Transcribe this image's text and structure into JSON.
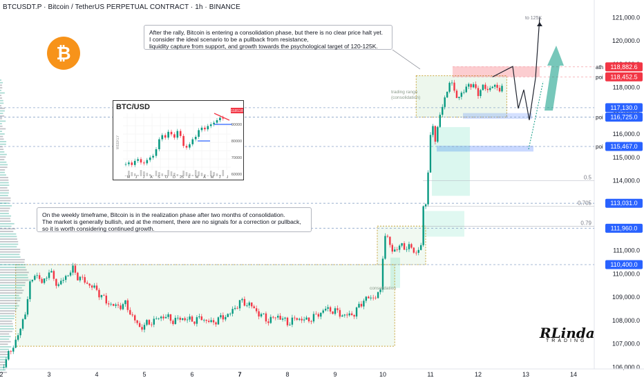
{
  "header": {
    "title": "BTCUSDT.P · Bitcoin / TetherUS PERPETUAL CONTRACT · 1h · BINANCE"
  },
  "notes": {
    "top": "After the rally, Bitcoin is entering a consolidation phase, but there is no clear price halt yet.\nI consider the ideal scenario to be a pullback from resistance,\nliquidity capture from support, and growth towards the psychological target of 120-125K.",
    "bottom": "On the weekly timeframe, Bitcoin is in the realization phase after two months of consolidation.\nThe market is generally bullish, and at the moment, there are no signals for a correction or pullback,\nso it is worth considering continued growth."
  },
  "inset": {
    "title": "BTC/USD",
    "price_tag": "118118",
    "y_ticks": [
      "90000",
      "80000",
      "70000",
      "60000"
    ],
    "x_ticks": [
      "M",
      "J",
      "J",
      "A",
      "S",
      "O",
      "D",
      "25",
      "F",
      "M",
      "A",
      "M",
      "J",
      "J"
    ],
    "axis_label": "WEEKLY"
  },
  "annotations": {
    "target": "to 125K",
    "ath": "ath",
    "poi": "poi",
    "trading_range": "trading range\n(consolidation)",
    "consolidation": "consolidation",
    "fib_50": "0.5",
    "fib_705": "0.705",
    "fib_79": "0.79"
  },
  "price_labels": [
    {
      "value": "118,882.6",
      "color": "#f23645"
    },
    {
      "value": "118,452.5",
      "color": "#f23645"
    },
    {
      "value": "117,130.0",
      "color": "#2962ff"
    },
    {
      "value": "116,725.0",
      "color": "#2962ff"
    },
    {
      "value": "115,467.0",
      "color": "#2962ff"
    },
    {
      "value": "113,031.0",
      "color": "#2962ff"
    },
    {
      "value": "111,960.0",
      "color": "#2962ff"
    },
    {
      "value": "110,400.0",
      "color": "#2962ff"
    }
  ],
  "brand": {
    "logo": "RLinda",
    "sub": "TRADING"
  },
  "chart_data": {
    "type": "candlestick",
    "y_ticks": [
      "121,000.0",
      "120,000.0",
      "119,000.0",
      "118,000.0",
      "117,000.0",
      "116,000.0",
      "115,000.0",
      "114,000.0",
      "113,000.0",
      "112,000.0",
      "111,000.0",
      "110,000.0",
      "109,000.0",
      "108,000.0",
      "107,000.0",
      "106,000.0"
    ],
    "y_values": [
      121000,
      120000,
      119000,
      118000,
      117000,
      116000,
      115000,
      114000,
      113000,
      112000,
      111000,
      110000,
      109000,
      108000,
      107000,
      106000
    ],
    "x_ticks": [
      "2",
      "3",
      "4",
      "5",
      "6",
      "7",
      "8",
      "9",
      "10",
      "11",
      "12",
      "13",
      "14"
    ],
    "ylim": [
      105450,
      121750
    ],
    "close_path": [
      [
        2.0,
        106000
      ],
      [
        2.2,
        106700
      ],
      [
        2.4,
        107600
      ],
      [
        2.5,
        108400
      ],
      [
        2.6,
        109500
      ],
      [
        2.7,
        110050
      ],
      [
        2.85,
        109600
      ],
      [
        3.0,
        110100
      ],
      [
        3.2,
        109500
      ],
      [
        3.35,
        109900
      ],
      [
        3.5,
        110200
      ],
      [
        3.6,
        109900
      ],
      [
        3.8,
        109600
      ],
      [
        4.0,
        109300
      ],
      [
        4.2,
        108800
      ],
      [
        4.4,
        108600
      ],
      [
        4.6,
        108700
      ],
      [
        4.8,
        108000
      ],
      [
        4.9,
        107700
      ],
      [
        5.0,
        107800
      ],
      [
        5.2,
        108000
      ],
      [
        5.4,
        108200
      ],
      [
        5.6,
        108000
      ],
      [
        5.8,
        108100
      ],
      [
        6.0,
        108000
      ],
      [
        6.2,
        108100
      ],
      [
        6.4,
        107900
      ],
      [
        6.6,
        108100
      ],
      [
        6.8,
        108300
      ],
      [
        7.0,
        108800
      ],
      [
        7.2,
        108700
      ],
      [
        7.4,
        108300
      ],
      [
        7.6,
        108000
      ],
      [
        7.8,
        108200
      ],
      [
        8.0,
        107900
      ],
      [
        8.2,
        108100
      ],
      [
        8.4,
        108000
      ],
      [
        8.6,
        108200
      ],
      [
        8.8,
        108500
      ],
      [
        9.0,
        108400
      ],
      [
        9.2,
        108200
      ],
      [
        9.4,
        108300
      ],
      [
        9.6,
        108900
      ],
      [
        9.8,
        109000
      ],
      [
        9.95,
        109200
      ],
      [
        10.0,
        110800
      ],
      [
        10.05,
        111700
      ],
      [
        10.2,
        111000
      ],
      [
        10.4,
        111200
      ],
      [
        10.6,
        111100
      ],
      [
        10.7,
        110900
      ],
      [
        10.8,
        111200
      ],
      [
        10.85,
        112800
      ],
      [
        10.9,
        113100
      ],
      [
        11.0,
        115800
      ],
      [
        11.05,
        116300
      ],
      [
        11.1,
        115800
      ],
      [
        11.2,
        116800
      ],
      [
        11.3,
        117500
      ],
      [
        11.4,
        118300
      ],
      [
        11.5,
        117800
      ],
      [
        11.6,
        117600
      ],
      [
        11.7,
        117800
      ],
      [
        11.8,
        118200
      ],
      [
        11.9,
        118000
      ],
      [
        12.0,
        117800
      ],
      [
        12.1,
        118000
      ],
      [
        12.2,
        117900
      ],
      [
        12.3,
        118100
      ],
      [
        12.4,
        117900
      ],
      [
        12.5,
        118100
      ]
    ],
    "levels": [
      118882.6,
      118452.5,
      117130.0,
      116725.0,
      115467.0,
      113031.0,
      111960.0,
      110400.0
    ],
    "fib_levels": [
      {
        "label": "0.5",
        "value": 114000
      },
      {
        "label": "0.705",
        "value": 112900
      },
      {
        "label": "0.79",
        "value": 112050
      }
    ],
    "zones": [
      {
        "name": "trading range",
        "x": [
          10.7,
          12.6
        ],
        "y": [
          116725,
          118500
        ]
      },
      {
        "name": "lower consolidation",
        "x": [
          2.3,
          10.25
        ],
        "y": [
          106900,
          110400
        ]
      }
    ]
  }
}
